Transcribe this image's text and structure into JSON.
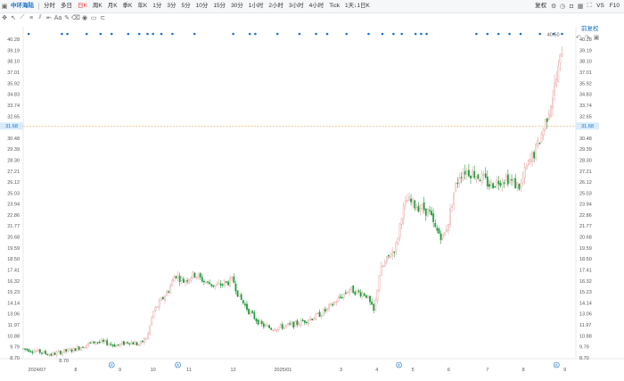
{
  "toolbar": {
    "stock_name": "中环海陆",
    "periods": [
      "分时",
      "多日",
      "日K",
      "周K",
      "月K",
      "季K",
      "年K",
      "1分",
      "3分",
      "5分",
      "10分",
      "15分",
      "30分",
      "1小时",
      "2小时",
      "3小时",
      "4小时",
      "Tick",
      "1天↓1日K"
    ],
    "active_period": "日K",
    "right_label": "复权",
    "right_icons": [
      "gear-icon",
      "clock-icon",
      "camera-icon",
      "layout-icon",
      "fullscreen-icon"
    ],
    "vs_label": "VS",
    "f10_label": "F10",
    "draw_icons": [
      "crosshair-icon",
      "cursor-icon",
      "trend-line-icon",
      "horizontal-line-icon",
      "parallel-icon",
      "ruler-icon",
      "text-icon",
      "brush-icon",
      "delete-icon",
      "eye-icon",
      "lock-icon",
      "magnet-icon"
    ]
  },
  "fuquan_label": "前复权",
  "colors": {
    "up": "#e9a3a3",
    "down": "#1f9d3a",
    "event_dot": "#1a73c8",
    "price_line": "#f0b070",
    "current_price_bg": "#d9ecfb"
  },
  "chart_data": {
    "type": "candlestick",
    "y_ticks": [
      "40.28",
      "39.19",
      "38.10",
      "37.01",
      "35.92",
      "34.83",
      "33.74",
      "32.65",
      "31.56",
      "30.48",
      "29.39",
      "28.30",
      "27.21",
      "26.12",
      "25.03",
      "23.94",
      "22.86",
      "21.77",
      "20.68",
      "19.59",
      "18.50",
      "17.41",
      "16.32",
      "15.23",
      "14.14",
      "13.06",
      "11.97",
      "10.88",
      "9.79",
      "8.70"
    ],
    "ylim": [
      8.7,
      40.28
    ],
    "current_price": 31.68,
    "max_label": "40.50",
    "min_label": "8.70",
    "x_ticks": [
      "2024/07",
      "8",
      "9",
      "10",
      "11",
      "12",
      "2025/01",
      "3",
      "4",
      "5",
      "6",
      "7",
      "8",
      "9"
    ],
    "x_tick_positions": [
      0.025,
      0.095,
      0.175,
      0.235,
      0.3,
      0.38,
      0.47,
      0.575,
      0.64,
      0.705,
      0.77,
      0.84,
      0.905,
      0.98
    ],
    "event_markers_bottom": [
      0.16,
      0.28,
      0.68,
      0.965
    ],
    "event_marker_label": "®",
    "top_dots": [
      0.01,
      0.07,
      0.08,
      0.115,
      0.14,
      0.16,
      0.19,
      0.21,
      0.225,
      0.235,
      0.25,
      0.27,
      0.31,
      0.38,
      0.41,
      0.42,
      0.46,
      0.5,
      0.53,
      0.55,
      0.585,
      0.625,
      0.65,
      0.67,
      0.685,
      0.71,
      0.72,
      0.73,
      0.82,
      0.84,
      0.86,
      0.88,
      0.9,
      0.935,
      0.96,
      0.975
    ],
    "keypoints": [
      [
        0,
        9.6
      ],
      [
        0.03,
        9.3
      ],
      [
        0.05,
        9.0
      ],
      [
        0.07,
        9.3
      ],
      [
        0.09,
        9.5
      ],
      [
        0.11,
        9.9
      ],
      [
        0.13,
        10.3
      ],
      [
        0.15,
        10.2
      ],
      [
        0.17,
        9.9
      ],
      [
        0.19,
        10.3
      ],
      [
        0.21,
        10.0
      ],
      [
        0.225,
        10.8
      ],
      [
        0.235,
        13.2
      ],
      [
        0.25,
        14.4
      ],
      [
        0.265,
        15.6
      ],
      [
        0.275,
        17.0
      ],
      [
        0.29,
        16.3
      ],
      [
        0.31,
        17.0
      ],
      [
        0.33,
        16.2
      ],
      [
        0.35,
        15.8
      ],
      [
        0.37,
        16.2
      ],
      [
        0.38,
        16.4
      ],
      [
        0.39,
        14.8
      ],
      [
        0.41,
        13.2
      ],
      [
        0.43,
        12.0
      ],
      [
        0.45,
        11.6
      ],
      [
        0.47,
        11.8
      ],
      [
        0.49,
        12.0
      ],
      [
        0.51,
        12.4
      ],
      [
        0.53,
        12.8
      ],
      [
        0.55,
        13.5
      ],
      [
        0.57,
        14.5
      ],
      [
        0.59,
        15.5
      ],
      [
        0.605,
        15.2
      ],
      [
        0.62,
        15.0
      ],
      [
        0.635,
        13.2
      ],
      [
        0.645,
        17.2
      ],
      [
        0.66,
        18.6
      ],
      [
        0.675,
        19.8
      ],
      [
        0.685,
        23.0
      ],
      [
        0.695,
        24.3
      ],
      [
        0.71,
        23.8
      ],
      [
        0.72,
        23.6
      ],
      [
        0.735,
        23.1
      ],
      [
        0.745,
        21.5
      ],
      [
        0.76,
        20.6
      ],
      [
        0.77,
        22.4
      ],
      [
        0.78,
        25.3
      ],
      [
        0.79,
        26.9
      ],
      [
        0.8,
        27.3
      ],
      [
        0.815,
        27.0
      ],
      [
        0.83,
        26.5
      ],
      [
        0.845,
        25.8
      ],
      [
        0.86,
        26.3
      ],
      [
        0.875,
        26.6
      ],
      [
        0.89,
        25.9
      ],
      [
        0.9,
        25.7
      ],
      [
        0.91,
        27.5
      ],
      [
        0.92,
        28.5
      ],
      [
        0.93,
        29.6
      ],
      [
        0.94,
        31.2
      ],
      [
        0.95,
        33.1
      ],
      [
        0.96,
        35.2
      ],
      [
        0.97,
        37.6
      ],
      [
        0.975,
        39.4
      ]
    ]
  }
}
